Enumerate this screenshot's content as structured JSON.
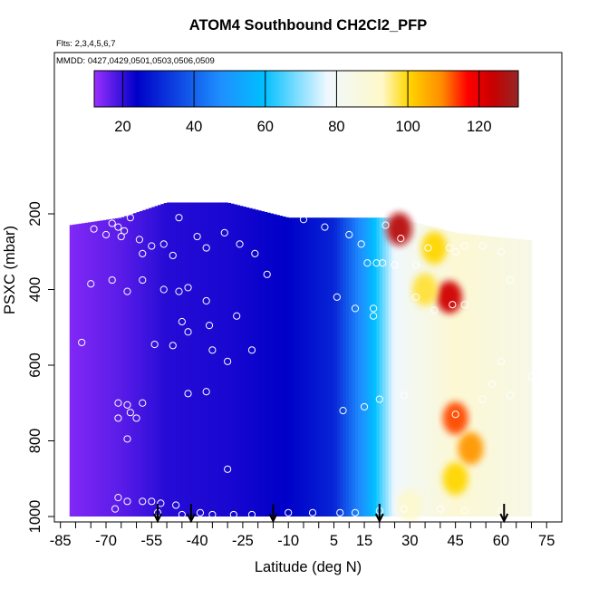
{
  "chart_data": {
    "type": "heatmap",
    "title": "ATOM4 Southbound CH2Cl2_PFP",
    "subtitle_flights": "Flts: 2,3,4,5,6,7",
    "subtitle_dates": "MMDD: 0427,0429,0501,0503,0506,0509",
    "xlabel": "Latitude (deg N)",
    "ylabel": "PSXC (mbar)",
    "xlim": [
      -87,
      80
    ],
    "ylim": [
      1000,
      0
    ],
    "x_ticks": [
      -85,
      -70,
      -55,
      -40,
      -25,
      -10,
      5,
      15,
      30,
      45,
      60,
      75
    ],
    "x_minor_ticks": [
      -80,
      -75,
      -65,
      -60,
      -50,
      -45,
      -35,
      -30,
      -20,
      -15,
      -5,
      0,
      10,
      20,
      25,
      35,
      40,
      50,
      55,
      65,
      70
    ],
    "y_ticks": [
      200,
      400,
      600,
      800,
      1000
    ],
    "colorbar": {
      "min": 12,
      "max": 131,
      "ticks": [
        20,
        40,
        60,
        80,
        100,
        120
      ],
      "colors": [
        "#9b30ff",
        "#0000c8",
        "#1e90ff",
        "#00bfff",
        "#f0f8ff",
        "#fff8c8",
        "#ffd700",
        "#ff8c00",
        "#ff0000",
        "#c80000",
        "#962626"
      ],
      "positions": [
        0,
        0.1,
        0.3,
        0.4,
        0.55,
        0.68,
        0.74,
        0.82,
        0.88,
        0.94,
        1
      ]
    },
    "grid": "off",
    "legend": "top colorbar",
    "profile_lat_range": [
      -82,
      70
    ],
    "regions": [
      {
        "lat": -82,
        "p_top": 230,
        "p_bottom": 1000,
        "value": 14
      },
      {
        "lat": -65,
        "p_top": 210,
        "p_bottom": 1000,
        "value": 17
      },
      {
        "lat": -50,
        "p_top": 170,
        "p_bottom": 1000,
        "value": 21
      },
      {
        "lat": -30,
        "p_top": 170,
        "p_bottom": 1000,
        "value": 22
      },
      {
        "lat": -10,
        "p_top": 210,
        "p_bottom": 1000,
        "value": 24
      },
      {
        "lat": 5,
        "p_top": 210,
        "p_bottom": 1000,
        "value": 30
      },
      {
        "lat": 15,
        "p_top": 210,
        "p_bottom": 1000,
        "value": 50
      },
      {
        "lat": 25,
        "p_top": 210,
        "p_bottom": 1000,
        "value": 78
      },
      {
        "lat": 45,
        "p_top": 250,
        "p_bottom": 1000,
        "value": 90
      },
      {
        "lat": 70,
        "p_top": 270,
        "p_bottom": 1000,
        "value": 84
      }
    ],
    "hotspots": [
      {
        "lat": 26.5,
        "p": 240,
        "value": 126
      },
      {
        "lat": 38,
        "p": 290,
        "value": 100
      },
      {
        "lat": 43,
        "p": 420,
        "value": 123
      },
      {
        "lat": 35,
        "p": 400,
        "value": 98
      },
      {
        "lat": 45,
        "p": 740,
        "value": 113
      },
      {
        "lat": 50,
        "p": 820,
        "value": 108
      },
      {
        "lat": 45,
        "p": 900,
        "value": 100
      },
      {
        "lat": 30,
        "p": 970,
        "value": 91
      }
    ],
    "sample_points": [
      {
        "lat": -85,
        "p": 445
      },
      {
        "lat": -74,
        "p": 240
      },
      {
        "lat": -70,
        "p": 255
      },
      {
        "lat": -68,
        "p": 225
      },
      {
        "lat": -66,
        "p": 235
      },
      {
        "lat": -65,
        "p": 260
      },
      {
        "lat": -64,
        "p": 245
      },
      {
        "lat": -62,
        "p": 210
      },
      {
        "lat": -59,
        "p": 268
      },
      {
        "lat": -55,
        "p": 285
      },
      {
        "lat": -58,
        "p": 305
      },
      {
        "lat": -51,
        "p": 280
      },
      {
        "lat": -48,
        "p": 310
      },
      {
        "lat": -40,
        "p": 260
      },
      {
        "lat": -46,
        "p": 210
      },
      {
        "lat": -37,
        "p": 290
      },
      {
        "lat": -31,
        "p": 250
      },
      {
        "lat": -26,
        "p": 280
      },
      {
        "lat": -21,
        "p": 305
      },
      {
        "lat": -5,
        "p": 215
      },
      {
        "lat": 2,
        "p": 235
      },
      {
        "lat": 10,
        "p": 255
      },
      {
        "lat": 14,
        "p": 280
      },
      {
        "lat": 22,
        "p": 230
      },
      {
        "lat": 27,
        "p": 265
      },
      {
        "lat": -75,
        "p": 385
      },
      {
        "lat": -68,
        "p": 375
      },
      {
        "lat": -63,
        "p": 405
      },
      {
        "lat": -58,
        "p": 375
      },
      {
        "lat": -51,
        "p": 400
      },
      {
        "lat": -46,
        "p": 405
      },
      {
        "lat": -43,
        "p": 395
      },
      {
        "lat": -17,
        "p": 360
      },
      {
        "lat": -37,
        "p": 430
      },
      {
        "lat": -27,
        "p": 470
      },
      {
        "lat": -45,
        "p": 485
      },
      {
        "lat": -43,
        "p": 512
      },
      {
        "lat": -36,
        "p": 495
      },
      {
        "lat": -78,
        "p": 540
      },
      {
        "lat": -54,
        "p": 545
      },
      {
        "lat": -48,
        "p": 548
      },
      {
        "lat": -35,
        "p": 560
      },
      {
        "lat": -22,
        "p": 560
      },
      {
        "lat": -30,
        "p": 590
      },
      {
        "lat": -43,
        "p": 675
      },
      {
        "lat": -37,
        "p": 670
      },
      {
        "lat": -66,
        "p": 700
      },
      {
        "lat": -63,
        "p": 705
      },
      {
        "lat": -58,
        "p": 700
      },
      {
        "lat": -62,
        "p": 725
      },
      {
        "lat": -66,
        "p": 740
      },
      {
        "lat": -63,
        "p": 795
      },
      {
        "lat": -60,
        "p": 740
      },
      {
        "lat": -30,
        "p": 875
      },
      {
        "lat": -66,
        "p": 950
      },
      {
        "lat": -63,
        "p": 960
      },
      {
        "lat": -58,
        "p": 960
      },
      {
        "lat": -55,
        "p": 960
      },
      {
        "lat": -52,
        "p": 965
      },
      {
        "lat": -67,
        "p": 980
      },
      {
        "lat": -47,
        "p": 970
      },
      {
        "lat": -53,
        "p": 990
      },
      {
        "lat": -45,
        "p": 995
      },
      {
        "lat": -39,
        "p": 990
      },
      {
        "lat": -35,
        "p": 995
      },
      {
        "lat": -28,
        "p": 995
      },
      {
        "lat": -22,
        "p": 995
      },
      {
        "lat": -10,
        "p": 990
      },
      {
        "lat": -2,
        "p": 990
      },
      {
        "lat": 7,
        "p": 990
      },
      {
        "lat": 12,
        "p": 990
      },
      {
        "lat": 20,
        "p": 985
      },
      {
        "lat": 28,
        "p": 980
      },
      {
        "lat": 40,
        "p": 980
      },
      {
        "lat": 48,
        "p": 985
      },
      {
        "lat": 60,
        "p": 985
      },
      {
        "lat": 8,
        "p": 720
      },
      {
        "lat": 15,
        "p": 710
      },
      {
        "lat": 20,
        "p": 690
      },
      {
        "lat": 45,
        "p": 730
      },
      {
        "lat": 57,
        "p": 650
      },
      {
        "lat": 63,
        "p": 680
      },
      {
        "lat": 54,
        "p": 690
      },
      {
        "lat": 28,
        "p": 680
      },
      {
        "lat": 60,
        "p": 590
      },
      {
        "lat": 70,
        "p": 630
      },
      {
        "lat": 12,
        "p": 450
      },
      {
        "lat": 18,
        "p": 470
      },
      {
        "lat": 6,
        "p": 420
      },
      {
        "lat": 18,
        "p": 450
      },
      {
        "lat": 32,
        "p": 420
      },
      {
        "lat": 38,
        "p": 455
      },
      {
        "lat": 44,
        "p": 440
      },
      {
        "lat": 48,
        "p": 440
      },
      {
        "lat": 16,
        "p": 330
      },
      {
        "lat": 19,
        "p": 330
      },
      {
        "lat": 21,
        "p": 330
      },
      {
        "lat": 25,
        "p": 335
      },
      {
        "lat": 32,
        "p": 335
      },
      {
        "lat": 36,
        "p": 290
      },
      {
        "lat": 43,
        "p": 290
      },
      {
        "lat": 45,
        "p": 300
      },
      {
        "lat": 48,
        "p": 285
      },
      {
        "lat": 54,
        "p": 285
      },
      {
        "lat": 60,
        "p": 300
      },
      {
        "lat": 63,
        "p": 375
      }
    ],
    "arrow_latitudes": [
      -53,
      -42,
      -15,
      20,
      61
    ]
  }
}
